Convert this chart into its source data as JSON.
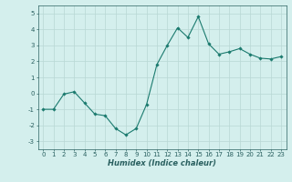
{
  "x": [
    0,
    1,
    2,
    3,
    4,
    5,
    6,
    7,
    8,
    9,
    10,
    11,
    12,
    13,
    14,
    15,
    16,
    17,
    18,
    19,
    20,
    21,
    22,
    23
  ],
  "y": [
    -1,
    -1,
    -0.05,
    0.1,
    -0.6,
    -1.3,
    -1.4,
    -2.2,
    -2.6,
    -2.2,
    -0.7,
    1.8,
    3.0,
    4.1,
    3.5,
    4.8,
    3.1,
    2.45,
    2.6,
    2.8,
    2.45,
    2.2,
    2.15,
    2.3
  ],
  "line_color": "#1a7a6e",
  "marker": "D",
  "marker_size": 1.8,
  "line_width": 0.8,
  "xlabel": "Humidex (Indice chaleur)",
  "xlabel_fontsize": 6,
  "bg_color": "#d4efed",
  "grid_color": "#b8d8d4",
  "tick_color": "#2a6060",
  "xlim": [
    -0.5,
    23.5
  ],
  "ylim": [
    -3.5,
    5.5
  ],
  "yticks": [
    -3,
    -2,
    -1,
    0,
    1,
    2,
    3,
    4,
    5
  ],
  "xticks": [
    0,
    1,
    2,
    3,
    4,
    5,
    6,
    7,
    8,
    9,
    10,
    11,
    12,
    13,
    14,
    15,
    16,
    17,
    18,
    19,
    20,
    21,
    22,
    23
  ],
  "tick_fontsize": 5.0
}
